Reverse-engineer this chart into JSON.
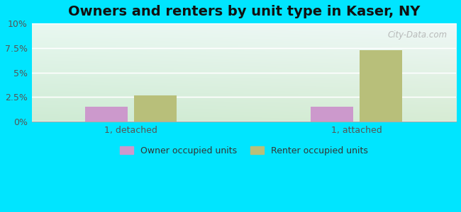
{
  "title": "Owners and renters by unit type in Kaser, NY",
  "categories": [
    "1, detached",
    "1, attached"
  ],
  "owner_values": [
    1.5,
    1.5
  ],
  "renter_values": [
    2.7,
    7.3
  ],
  "owner_color": "#cc99cc",
  "renter_color": "#b8bf7a",
  "ylim": [
    0,
    10
  ],
  "yticks": [
    0,
    2.5,
    5,
    7.5,
    10
  ],
  "ytick_labels": [
    "0%",
    "2.5%",
    "5%",
    "7.5%",
    "10%"
  ],
  "background_outer": "#00e5ff",
  "grid_color": "#ffffff",
  "title_fontsize": 14,
  "bar_width": 0.32,
  "watermark": "City-Data.com",
  "legend_owner": "Owner occupied units",
  "legend_renter": "Renter occupied units"
}
